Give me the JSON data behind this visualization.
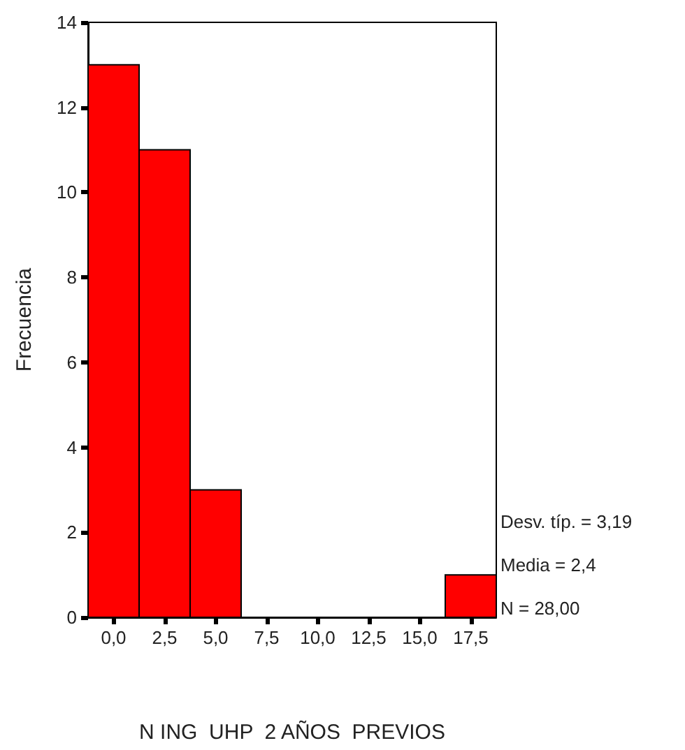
{
  "chart_data": {
    "type": "histogram",
    "xlabel": "N ING  UHP  2 AÑOS  PREVIOS",
    "ylabel": "Frecuencia",
    "bins": [
      -1.25,
      1.25,
      3.75,
      6.25,
      8.75,
      11.25,
      13.75,
      16.25,
      18.75
    ],
    "values": [
      13,
      11,
      3,
      0,
      0,
      0,
      0,
      1
    ],
    "color": "#ff0000",
    "xlim": [
      -1.25,
      18.75
    ],
    "xticks": [
      {
        "value": 0,
        "label": "0,0"
      },
      {
        "value": 2.5,
        "label": "2,5"
      },
      {
        "value": 5,
        "label": "5,0"
      },
      {
        "value": 7.5,
        "label": "7,5"
      },
      {
        "value": 10,
        "label": "10,0"
      },
      {
        "value": 12.5,
        "label": "12,5"
      },
      {
        "value": 15,
        "label": "15,0"
      },
      {
        "value": 17.5,
        "label": "17,5"
      }
    ],
    "ylim": [
      0,
      14
    ],
    "yticks": [
      0,
      2,
      4,
      6,
      8,
      10,
      12,
      14
    ],
    "grid": false,
    "legend": false,
    "annotations": [
      "Desv. típ. = 3,19",
      "Media = 2,4",
      "N = 28,00"
    ]
  }
}
